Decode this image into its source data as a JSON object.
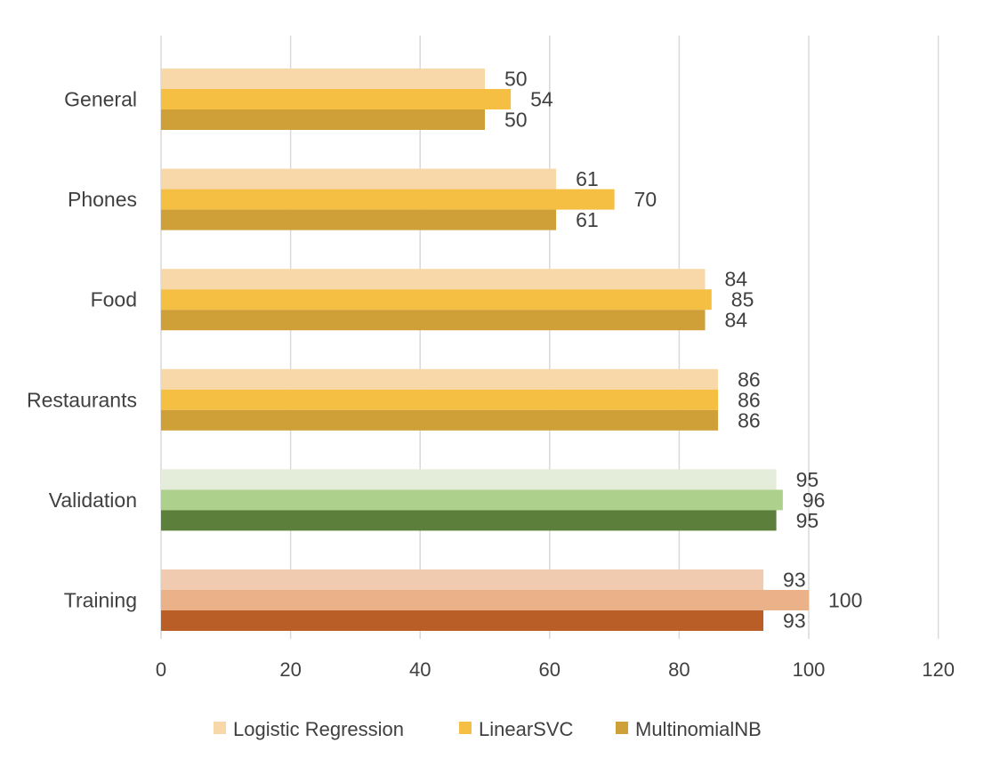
{
  "chart_data": {
    "type": "bar",
    "orientation": "horizontal",
    "categories": [
      "Training",
      "Validation",
      "Restaurants",
      "Food",
      "Phones",
      "General"
    ],
    "series": [
      {
        "name": "Logistic Regression",
        "values": [
          93,
          95,
          86,
          84,
          61,
          50
        ]
      },
      {
        "name": "LinearSVC",
        "values": [
          100,
          96,
          86,
          85,
          70,
          54
        ]
      },
      {
        "name": "MultinomialNB",
        "values": [
          93,
          95,
          86,
          84,
          61,
          50
        ]
      }
    ],
    "data_labels": [
      [
        "93",
        "95",
        "86",
        "84",
        "61",
        "50"
      ],
      [
        "100",
        "96",
        "86",
        "85",
        "70",
        "54"
      ],
      [
        "93",
        "95",
        "86",
        "84",
        "61",
        "50"
      ]
    ],
    "xlim": [
      0,
      120
    ],
    "x_ticks": [
      0,
      20,
      40,
      60,
      80,
      100,
      120
    ],
    "x_tick_labels": [
      "0",
      "20",
      "40",
      "60",
      "80",
      "100",
      "120"
    ],
    "grid": "vertical",
    "legend": "bottom",
    "colors": {
      "default": [
        "#f8d8a8",
        "#f5bf43",
        "#cf9f38"
      ],
      "Validation": [
        "#e4edd9",
        "#add08c",
        "#5c7f3c"
      ],
      "Training": [
        "#f0cbb0",
        "#ebb188",
        "#b95e27"
      ]
    }
  }
}
